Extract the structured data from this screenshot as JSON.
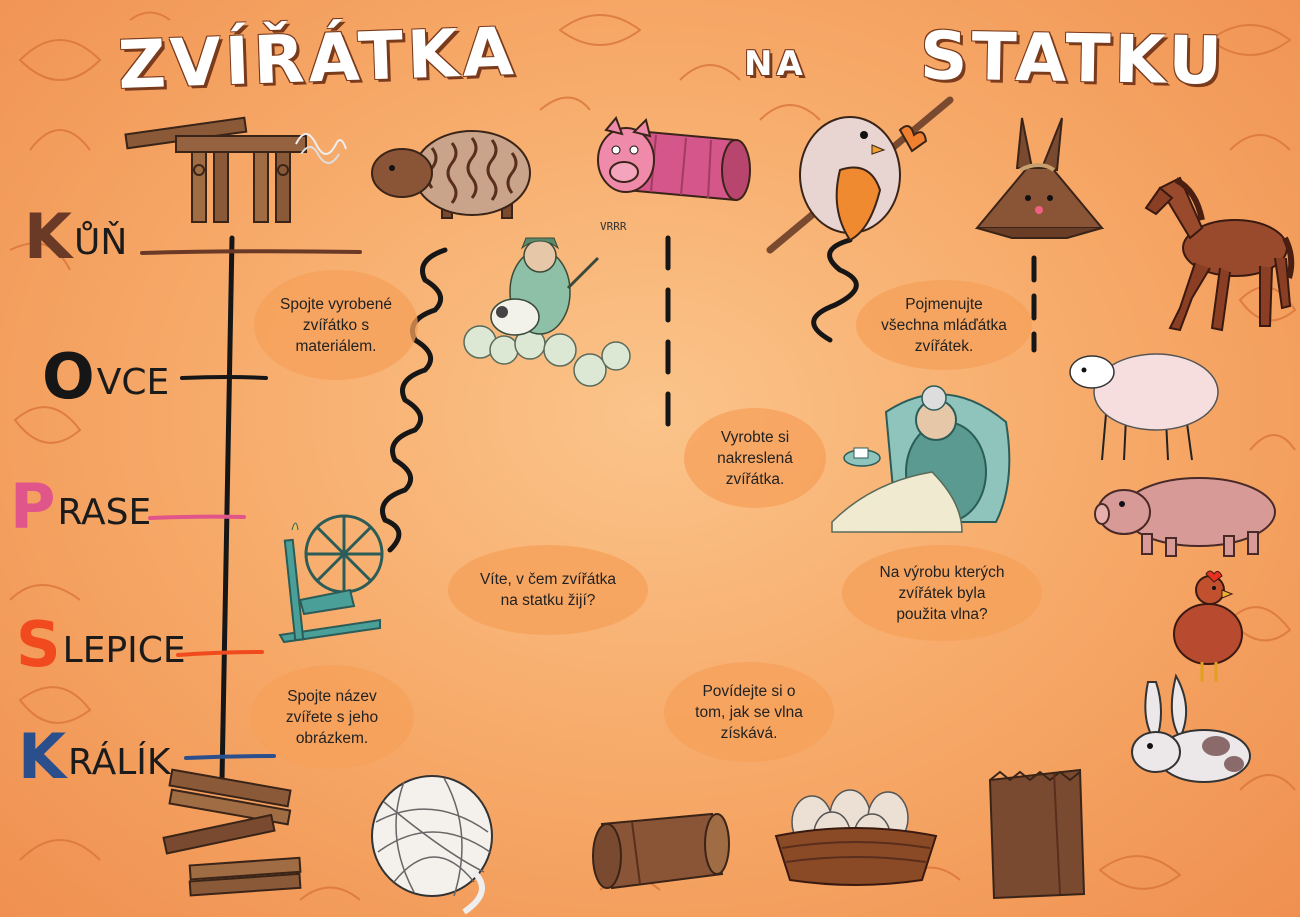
{
  "title": {
    "word1": "ZVÍŘÁTKA",
    "word2": "NA",
    "word3": "STATKU"
  },
  "animals": [
    {
      "initial": "K",
      "rest": "ŮŇ",
      "color": "#6b3a26",
      "line_color": "#6b3a26"
    },
    {
      "initial": "O",
      "rest": "VCE",
      "color": "#161616",
      "line_color": "#161616"
    },
    {
      "initial": "P",
      "rest": "RASE",
      "color": "#e0558a",
      "line_color": "#e0558a"
    },
    {
      "initial": "S",
      "rest": "LEPICE",
      "color": "#f04a1e",
      "line_color": "#f04a1e"
    },
    {
      "initial": "K",
      "rest": "RÁLÍK",
      "color": "#2b4e8c",
      "line_color": "#2b4e8c"
    }
  ],
  "tasks": [
    "Spojte vyrobené\nzvířátko s\nmateriálem.",
    "Spojte název\nzvířete s jeho\nobrázkem.",
    "Víte, v čem zvířátka\nna statku žijí?",
    "Vyrobte si\nnakreslená\nzvířátka.",
    "Povídejte si o\ntom, jak se vlna\nzískává.",
    "Pojmenujte\nvšechna mláďátka\nzvířátek.",
    "Na výrobu kterých\nzvířátek byla\npoužita vlna?"
  ],
  "farmer_sound": "VRRR",
  "colors": {
    "background": "#f6a766",
    "title_outline": "#7a3a1c",
    "ink": "#161616"
  }
}
